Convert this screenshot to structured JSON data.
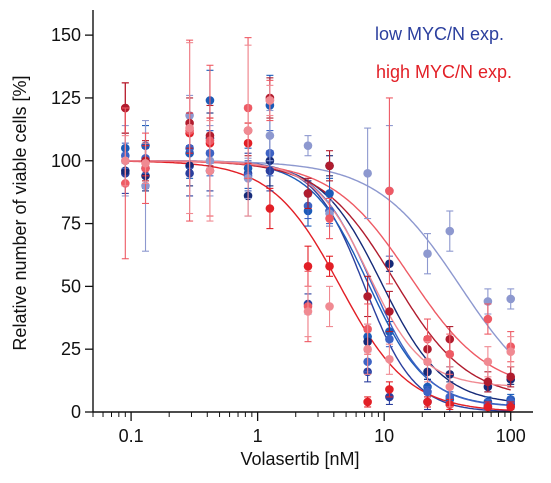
{
  "chart_data": {
    "type": "scatter",
    "xlabel": "Volasertib [nM]",
    "ylabel": "Relative number of viable cells [%]",
    "x_scale": "log",
    "xlim": [
      0.05,
      150
    ],
    "ylim": [
      0,
      160
    ],
    "x_ticks": [
      0.1,
      1,
      10,
      100
    ],
    "x_tick_labels": [
      "0.1",
      "1",
      "10",
      "100"
    ],
    "y_ticks": [
      0,
      25,
      50,
      75,
      100,
      125,
      150
    ],
    "y_tick_labels": [
      "0",
      "25",
      "50",
      "75",
      "100",
      "125",
      "150"
    ],
    "grid": false,
    "legend_position": "top-right",
    "legend": [
      {
        "label": "low MYC/N exp.",
        "color": "#2B3F9E"
      },
      {
        "label": "high MYC/N exp.",
        "color": "#E21F26"
      }
    ],
    "series": [
      {
        "group": "low",
        "color": "#2B3F9E",
        "ic50": 7.0,
        "hill": 2.2,
        "bottom": 0,
        "x": [
          0.09,
          0.13,
          0.29,
          0.42,
          0.84,
          1.25,
          2.5,
          3.7,
          7.4,
          11,
          22,
          33,
          66,
          100
        ],
        "y": [
          95,
          97,
          95,
          96,
          95,
          96,
          43,
          80,
          16,
          6,
          4,
          3,
          2,
          3
        ],
        "err": [
          8,
          8,
          9,
          8,
          8,
          8,
          4,
          6,
          4,
          3,
          3,
          3,
          2,
          2
        ]
      },
      {
        "group": "low",
        "color": "#1B5BB8",
        "ic50": 7.5,
        "hill": 1.9,
        "bottom": 2,
        "x": [
          0.09,
          0.13,
          0.29,
          0.42,
          0.84,
          1.25,
          2.5,
          3.7,
          7.4,
          11,
          22,
          33,
          66,
          100
        ],
        "y": [
          105,
          106,
          103,
          124,
          97,
          122,
          80,
          87,
          30,
          32,
          10,
          5,
          4,
          5
        ],
        "err": [
          6,
          8,
          10,
          12,
          8,
          12,
          6,
          6,
          5,
          4,
          3,
          3,
          2,
          2
        ]
      },
      {
        "group": "low",
        "color": "#152A78",
        "ic50": 9.5,
        "hill": 1.8,
        "bottom": 3,
        "x": [
          0.09,
          0.13,
          0.29,
          0.42,
          0.84,
          1.25,
          2.5,
          3.7,
          7.4,
          11,
          22,
          33,
          66,
          100
        ],
        "y": [
          96,
          94,
          98,
          109,
          86,
          100,
          87,
          98,
          28,
          59,
          16,
          15,
          10,
          13
        ],
        "err": [
          6,
          6,
          8,
          10,
          8,
          10,
          5,
          4,
          4,
          3,
          3,
          3,
          2,
          2
        ]
      },
      {
        "group": "low",
        "color": "#3E63C4",
        "ic50": 8.0,
        "hill": 2.0,
        "bottom": 2,
        "x": [
          0.09,
          0.13,
          0.29,
          0.42,
          0.84,
          1.25,
          2.5,
          3.7,
          7.4,
          11,
          22,
          33,
          66,
          100
        ],
        "y": [
          102,
          101,
          105,
          103,
          94,
          103,
          82,
          80,
          20,
          29,
          8,
          6,
          3,
          4
        ],
        "err": [
          5,
          6,
          8,
          9,
          6,
          9,
          5,
          5,
          4,
          3,
          2,
          2,
          2,
          2
        ]
      },
      {
        "group": "low",
        "color": "#8D98CF",
        "ic50": 40,
        "hill": 1.3,
        "bottom": 0,
        "x": [
          0.09,
          0.13,
          0.29,
          0.42,
          0.84,
          1.25,
          2.5,
          3.7,
          7.4,
          11,
          22,
          33,
          66,
          100
        ],
        "y": [
          100,
          90,
          118,
          100,
          93,
          110,
          106,
          79,
          95,
          88,
          63,
          72,
          44,
          45
        ],
        "err": [
          14,
          26,
          8,
          14,
          8,
          10,
          4,
          5,
          18,
          26,
          8,
          8,
          5,
          4
        ]
      },
      {
        "group": "high",
        "color": "#E21F26",
        "ic50": 4.5,
        "hill": 1.6,
        "bottom": 0,
        "x": [
          0.09,
          0.13,
          0.29,
          0.42,
          0.84,
          1.25,
          2.5,
          3.7,
          7.4,
          11,
          22,
          33,
          66,
          100
        ],
        "y": [
          121,
          100,
          111,
          107,
          107,
          81,
          58,
          58,
          4,
          9,
          4,
          3,
          2,
          2
        ],
        "err": [
          10,
          6,
          8,
          10,
          8,
          8,
          8,
          4,
          2,
          3,
          2,
          2,
          2,
          2
        ]
      },
      {
        "group": "high",
        "color": "#B01C2E",
        "ic50": 12,
        "hill": 1.5,
        "bottom": 5,
        "x": [
          0.09,
          0.13,
          0.29,
          0.42,
          0.84,
          1.25,
          2.5,
          3.7,
          7.4,
          11,
          22,
          33,
          66,
          100
        ],
        "y": [
          121,
          100,
          115,
          110,
          112,
          125,
          87,
          98,
          46,
          40,
          25,
          29,
          12,
          14
        ],
        "err": [
          10,
          8,
          10,
          12,
          10,
          8,
          6,
          6,
          8,
          8,
          5,
          5,
          4,
          4
        ]
      },
      {
        "group": "high",
        "color": "#EE5A64",
        "ic50": 16,
        "hill": 1.4,
        "bottom": 8,
        "x": [
          0.09,
          0.13,
          0.29,
          0.42,
          0.84,
          1.25,
          2.5,
          3.7,
          7.4,
          11,
          22,
          33,
          66,
          100
        ],
        "y": [
          91,
          97,
          112,
          108,
          121,
          124,
          42,
          77,
          33,
          88,
          29,
          23,
          37,
          26
        ],
        "err": [
          30,
          14,
          36,
          30,
          28,
          8,
          14,
          8,
          10,
          37,
          8,
          8,
          6,
          6
        ]
      },
      {
        "group": "high",
        "color": "#F08A92",
        "ic50": 7.5,
        "hill": 2.0,
        "bottom": 10,
        "x": [
          0.09,
          0.13,
          0.29,
          0.42,
          0.84,
          1.25,
          2.5,
          3.7,
          7.4,
          11,
          22,
          33,
          66,
          100
        ],
        "y": [
          100,
          99,
          113,
          96,
          112,
          124,
          40,
          42,
          25,
          21,
          20,
          10,
          20,
          24
        ],
        "err": [
          10,
          8,
          34,
          20,
          34,
          6,
          10,
          8,
          10,
          6,
          8,
          8,
          6,
          6
        ]
      }
    ]
  }
}
